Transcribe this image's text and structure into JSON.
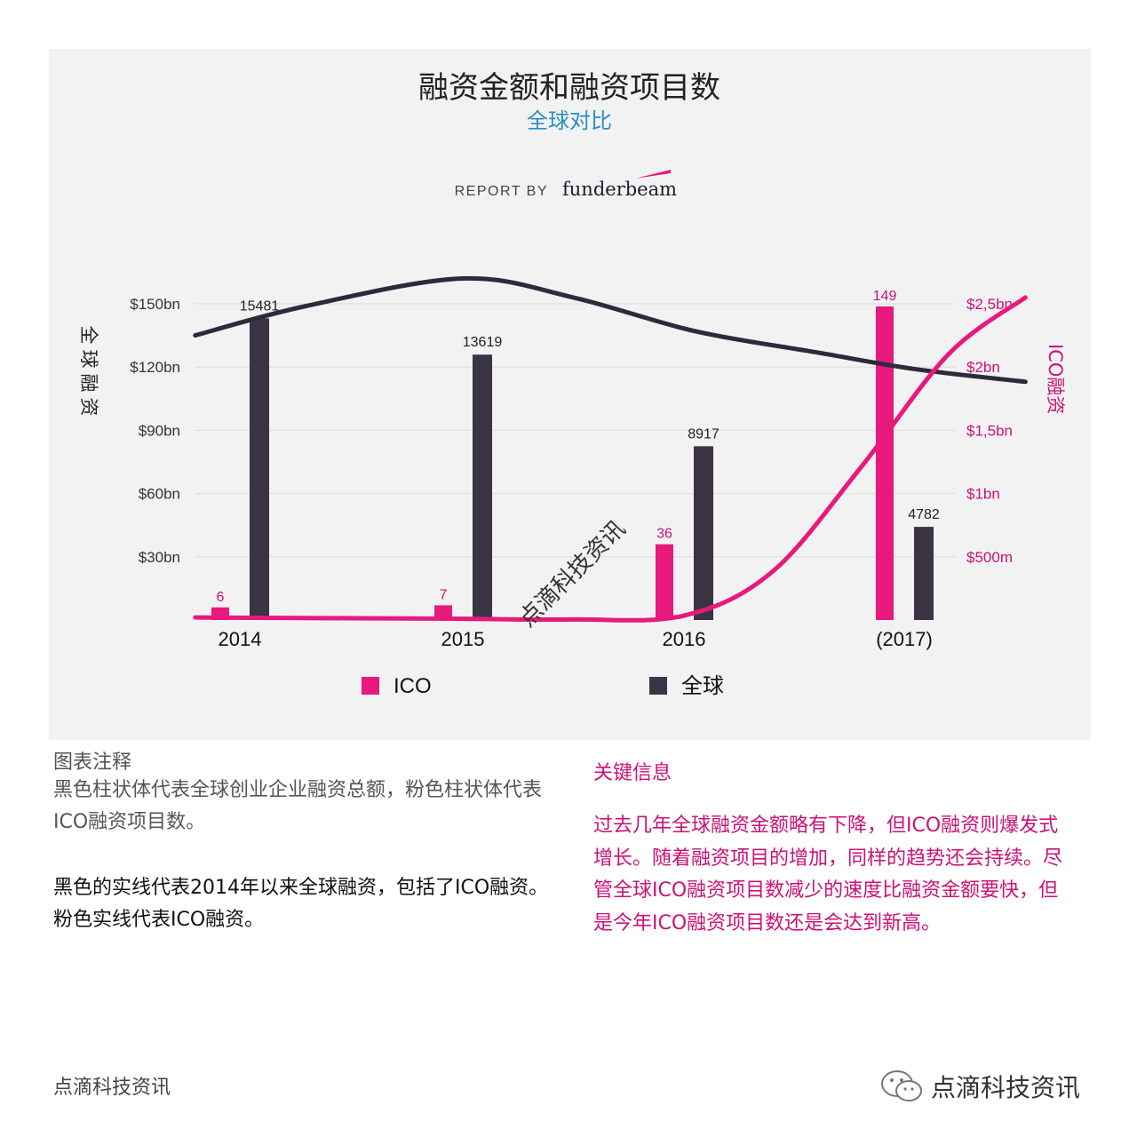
{
  "chart_data": {
    "type": "bar",
    "title": "融资金额和融资项目数",
    "subtitle": "全球对比",
    "report_by": "REPORT BY",
    "brand": "funderbeam",
    "categories": [
      "2014",
      "2015",
      "2016",
      "(2017)"
    ],
    "series": [
      {
        "name": "ICO",
        "color": "#e8197d",
        "values": [
          6,
          7,
          36,
          149
        ]
      },
      {
        "name": "全球",
        "color": "#3a3444",
        "values": [
          15481,
          13619,
          8917,
          4782
        ]
      }
    ],
    "bar_scale": {
      "max_value": 16000
    },
    "lines": [
      {
        "axis": "left",
        "color": "#2e2a3c",
        "description_ref": "全球融资",
        "x_knots": [
          0,
          1,
          2,
          3,
          4,
          5,
          6,
          7
        ],
        "points_bn": [
          [
            -0.2,
            135
          ],
          [
            0.3,
            149
          ],
          [
            1.0,
            162
          ],
          [
            1.5,
            153
          ],
          [
            2.05,
            137
          ],
          [
            2.6,
            127
          ],
          [
            3.05,
            119
          ],
          [
            3.55,
            113
          ]
        ]
      },
      {
        "axis": "right",
        "color": "#e8197d",
        "description_ref": "ICO融资",
        "points_m": [
          [
            -0.2,
            20
          ],
          [
            0.5,
            14
          ],
          [
            1.0,
            10
          ],
          [
            1.5,
            4
          ],
          [
            2.0,
            35
          ],
          [
            2.4,
            380
          ],
          [
            2.8,
            1200
          ],
          [
            3.2,
            2100
          ],
          [
            3.55,
            2550
          ]
        ]
      }
    ],
    "left_axis": {
      "label": "全球融资",
      "ticks": [
        "$30bn",
        "$60bn",
        "$90bn",
        "$120bn",
        "$150bn"
      ],
      "tick_values": [
        30,
        60,
        90,
        120,
        150
      ],
      "ylim": [
        0,
        150
      ]
    },
    "right_axis": {
      "label": "ICO融资",
      "ticks": [
        "$500m",
        "$1bn",
        "$1,5bn",
        "$2bn",
        "$2,5bn"
      ],
      "tick_values": [
        500,
        1000,
        1500,
        2000,
        2500
      ],
      "ylim": [
        0,
        2500
      ]
    },
    "grid": true,
    "legend_position": "bottom"
  },
  "watermark": "点滴科技资讯",
  "notes": {
    "heading": "图表注释",
    "body": "黑色柱状体代表全球创业企业融资总额，粉色柱状体代表ICO融资项目数。",
    "line_note": "黑色的实线代表2014年以来全球融资，包括了ICO融资。粉色实线代表ICO融资。"
  },
  "key_info": {
    "heading": "关键信息",
    "body": "过去几年全球融资金额略有下降，但ICO融资则爆发式增长。随着融资项目的增加，同样的趋势还会持续。尽管全球ICO融资项目数减少的速度比融资金额要快，但是今年ICO融资项目数还是会达到新高。"
  },
  "footer": {
    "left": "点滴科技资讯",
    "right": "点滴科技资讯"
  }
}
